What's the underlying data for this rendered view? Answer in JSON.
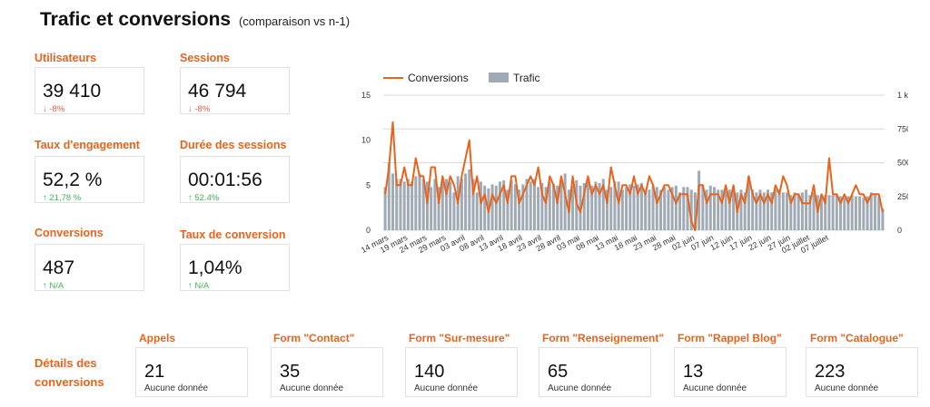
{
  "header": {
    "title": "Trafic et conversions",
    "subtitle": "(comparaison vs n-1)"
  },
  "kpis": [
    {
      "label": "Utilisateurs",
      "value": "39 410",
      "delta": "-8%",
      "trend": "down"
    },
    {
      "label": "Sessions",
      "value": "46 794",
      "delta": "-8%",
      "trend": "down"
    },
    {
      "label": "Taux d'engagement",
      "value": "52,2 %",
      "delta": "21,78 %",
      "trend": "up"
    },
    {
      "label": "Durée des sessions",
      "value": "00:01:56",
      "delta": "52.4%",
      "trend": "up"
    },
    {
      "label": "Conversions",
      "value": "487",
      "delta": "N/A",
      "trend": "up"
    },
    {
      "label": "Taux de conversion",
      "value": "1,04%",
      "delta": "N/A",
      "trend": "up"
    }
  ],
  "details": {
    "title": "Détails des conversions",
    "title_lines": [
      "Détails des",
      "conversions"
    ],
    "cards": [
      {
        "label": "Appels",
        "value": "21",
        "note": "Aucune donnée"
      },
      {
        "label": "Form \"Contact\"",
        "value": "35",
        "note": "Aucune donnée"
      },
      {
        "label": "Form \"Sur-mesure\"",
        "value": "140",
        "note": "Aucune donnée"
      },
      {
        "label": "Form \"Renseignement\"",
        "value": "65",
        "note": "Aucune donnée"
      },
      {
        "label": "Form \"Rappel Blog\"",
        "value": "13",
        "note": "Aucune donnée"
      },
      {
        "label": "Form \"Catalogue\"",
        "value": "223",
        "note": "Aucune donnée"
      }
    ]
  },
  "colors": {
    "accent": "#e8631c",
    "negative": "#e2584d",
    "positive": "#41b35a",
    "bar": "#a0aab5",
    "line": "#e8631c"
  },
  "chart_data": {
    "type": "bar",
    "title": "",
    "legend_position": "top-left",
    "grid": true,
    "series": [
      {
        "name": "Conversions",
        "type": "line",
        "axis": "left",
        "values": [
          4,
          7,
          12,
          5,
          5,
          7,
          5,
          5,
          8,
          6,
          6,
          3,
          7,
          7,
          3,
          6,
          4,
          6,
          5,
          3,
          6,
          8,
          10,
          4,
          6,
          3,
          4,
          2,
          4,
          3,
          4,
          5,
          3,
          6,
          6,
          3,
          4,
          5,
          6,
          5,
          7,
          4,
          3,
          6,
          5,
          3,
          6,
          4,
          2,
          6,
          3,
          2,
          4,
          6,
          4,
          5,
          4,
          5,
          3,
          7,
          5,
          3,
          5,
          5,
          4,
          6,
          4,
          5,
          4,
          6,
          5,
          3,
          4,
          5,
          5,
          4,
          3,
          4,
          4,
          4,
          1,
          0,
          5,
          5,
          3,
          4,
          4,
          4,
          3,
          5,
          3,
          5,
          2,
          4,
          3,
          6,
          4,
          3,
          4,
          3,
          4,
          3,
          5,
          4,
          6,
          5,
          3,
          4,
          4,
          3,
          3,
          3,
          5,
          2,
          4,
          3,
          8,
          4,
          4,
          3,
          4,
          3,
          4,
          5,
          4,
          4,
          3,
          4,
          4,
          4,
          2
        ],
        "ylim": [
          0,
          15
        ]
      },
      {
        "name": "Trafic",
        "type": "bar",
        "axis": "right",
        "values": [
          320,
          500,
          420,
          380,
          380,
          360,
          380,
          360,
          400,
          420,
          380,
          360,
          320,
          380,
          320,
          360,
          380,
          360,
          280,
          400,
          380,
          420,
          450,
          380,
          280,
          360,
          330,
          310,
          340,
          330,
          360,
          370,
          300,
          370,
          340,
          300,
          340,
          380,
          360,
          380,
          320,
          350,
          320,
          360,
          340,
          330,
          360,
          420,
          300,
          330,
          370,
          330,
          350,
          360,
          330,
          360,
          350,
          380,
          300,
          320,
          360,
          360,
          300,
          320,
          340,
          330,
          340,
          350,
          300,
          300,
          330,
          320,
          300,
          320,
          300,
          320,
          330,
          280,
          320,
          320,
          300,
          280,
          440,
          340,
          300,
          330,
          320,
          300,
          300,
          290,
          300,
          300,
          280,
          300,
          280,
          400,
          300,
          280,
          300,
          280,
          300,
          280,
          300,
          300,
          280,
          280,
          260,
          280,
          270,
          280,
          300,
          260,
          280,
          260,
          250,
          260,
          260,
          260,
          260,
          250,
          240,
          250,
          260,
          250,
          250,
          240,
          250,
          280,
          260,
          250,
          160
        ],
        "ylim": [
          0,
          1000
        ]
      }
    ],
    "x_tick_labels": [
      "14 mars",
      "19 mars",
      "24 mars",
      "29 mars",
      "03 avril",
      "08 avril",
      "13 avril",
      "18 avril",
      "23 avril",
      "28 avril",
      "03 mai",
      "08 mai",
      "13 mai",
      "18 mai",
      "23 mai",
      "28 mai",
      "02 juin",
      "07 juin",
      "12 juin",
      "17 juin",
      "22 juin",
      "27 juin",
      "02 juillet",
      "07 juillet"
    ],
    "y_left": {
      "ticks": [
        "0",
        "5",
        "10",
        "15"
      ],
      "ylim": [
        0,
        15
      ]
    },
    "y_right": {
      "ticks": [
        "0",
        "250",
        "500",
        "750",
        "1 k"
      ],
      "ylim": [
        0,
        1000
      ]
    }
  }
}
